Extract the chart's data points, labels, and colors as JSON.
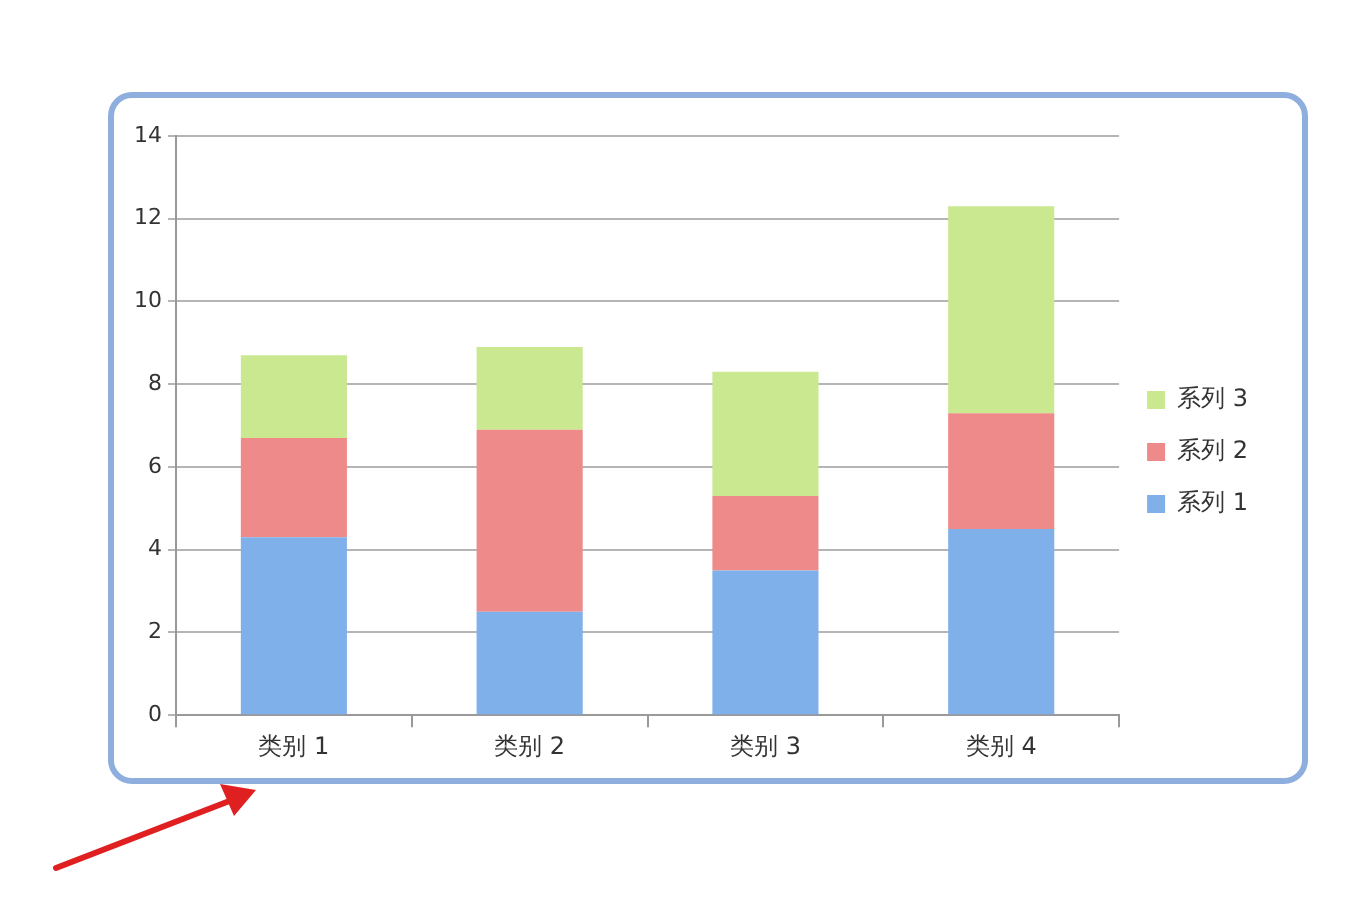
{
  "chart_data": {
    "type": "bar",
    "stacked": true,
    "categories": [
      "类别 1",
      "类别 2",
      "类别 3",
      "类别 4"
    ],
    "series": [
      {
        "name": "系列 1",
        "color": "#7fb0ea",
        "values": [
          4.3,
          2.5,
          3.5,
          4.5
        ]
      },
      {
        "name": "系列 2",
        "color": "#ee8a89",
        "values": [
          2.4,
          4.4,
          1.8,
          2.8
        ]
      },
      {
        "name": "系列 3",
        "color": "#c9e88f",
        "values": [
          2,
          2,
          3,
          5
        ]
      }
    ],
    "ylim": [
      0,
      14
    ],
    "yticks": [
      0,
      2,
      4,
      6,
      8,
      10,
      12,
      14
    ],
    "grid": "y",
    "legend": "right"
  }
}
